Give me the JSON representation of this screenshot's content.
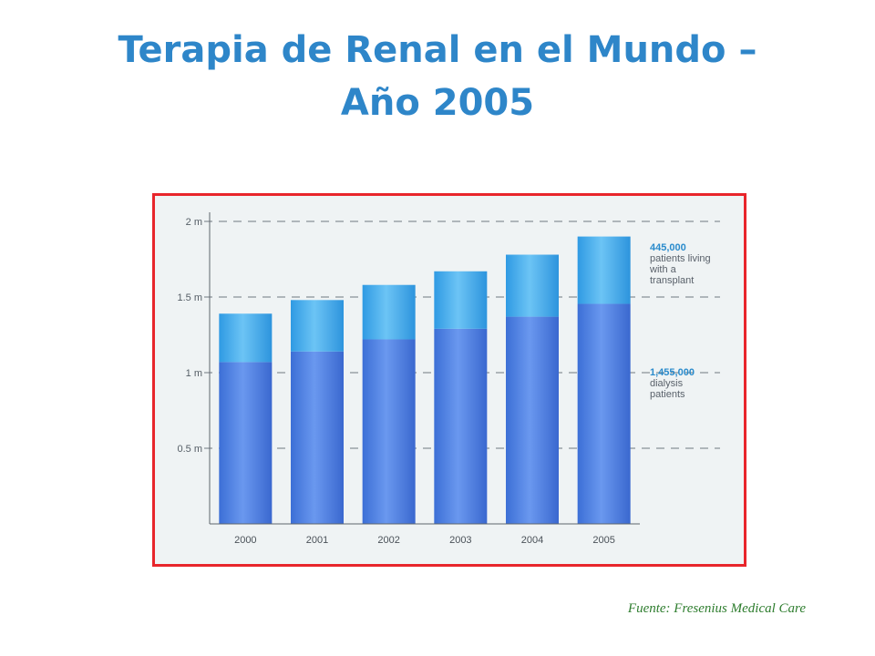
{
  "slide": {
    "title_line1": "Terapia de Renal en el  Mundo –",
    "title_line2": "Año 2005",
    "source": "Fuente: Fresenius Medical Care"
  },
  "chart_data": {
    "type": "bar",
    "stacked": true,
    "categories": [
      "2000",
      "2001",
      "2002",
      "2003",
      "2004",
      "2005"
    ],
    "series": [
      {
        "name": "dialysis patients",
        "values": [
          1.07,
          1.14,
          1.22,
          1.29,
          1.37,
          1.455
        ],
        "color": "#4e82e0"
      },
      {
        "name": "patients living with a transplant",
        "values": [
          0.32,
          0.34,
          0.36,
          0.38,
          0.41,
          0.445
        ],
        "color": "#3aa6ea"
      }
    ],
    "ylim": [
      0,
      2
    ],
    "yticks": [
      {
        "value": 0.5,
        "label": "0.5 m"
      },
      {
        "value": 1,
        "label": "1 m"
      },
      {
        "value": 1.5,
        "label": "1.5 m"
      },
      {
        "value": 2,
        "label": "2 m"
      }
    ],
    "grid": true,
    "annotations": [
      {
        "id": "transplant",
        "value": 1.675,
        "heading": "445,000",
        "lines": [
          "patients living",
          "with a",
          "transplant"
        ]
      },
      {
        "id": "dialysis",
        "value": 0.85,
        "heading": "1,455,000",
        "lines": [
          "dialysis",
          "patients"
        ]
      }
    ],
    "colors": {
      "frame": "#e8252b",
      "title": "#2e86c9",
      "annotation": "#2a8bcc",
      "background": "#eff3f4"
    }
  }
}
